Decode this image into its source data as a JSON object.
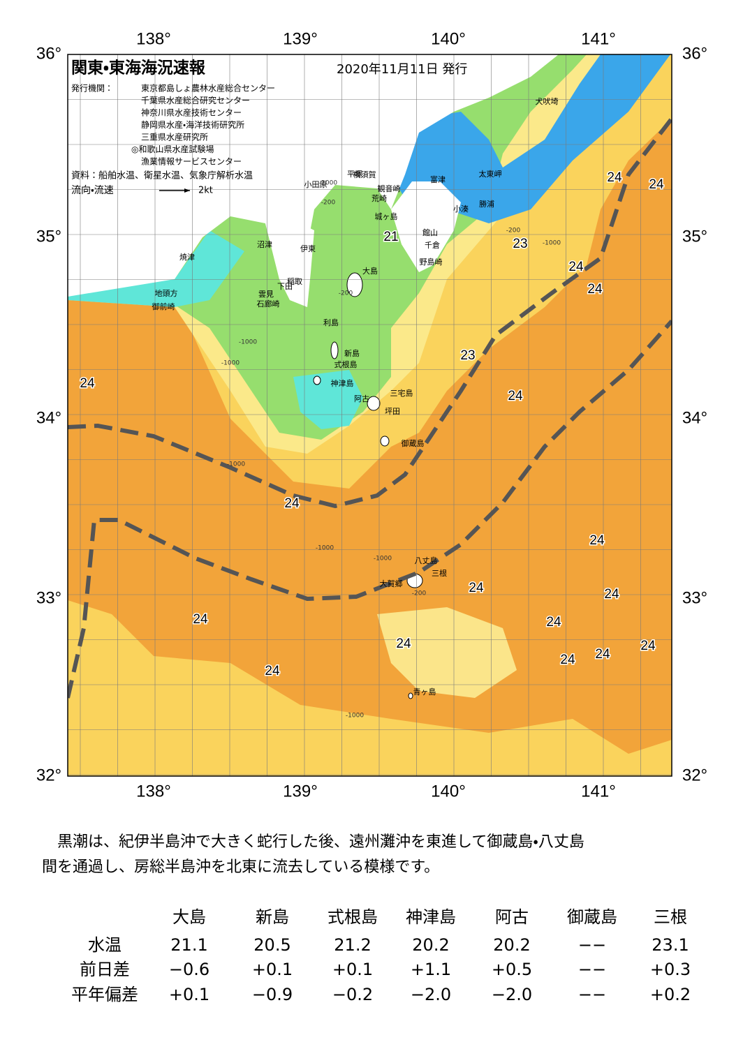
{
  "header": {
    "title": "関東・東海海況速報",
    "date": "2020年11月11日 発行"
  },
  "issuers": {
    "label": "発行機関：",
    "names": [
      "東京都島しょ農林水産総合センター",
      "千葉県水産総合研究センター",
      "神奈川県水産技術センター",
      "静岡県水産・海洋技術研究所",
      "三重県水産研究所",
      "◎和歌山県水産試験場",
      "漁業情報サービスセンター"
    ]
  },
  "source": "資料：船舶水温、衛星水温、気象庁解析水温",
  "legend": {
    "label": "流向・流速",
    "speed": "2kt"
  },
  "axes": {
    "lon_labels": [
      "138°",
      "139°",
      "140°",
      "141°"
    ],
    "lat_labels": [
      "36°",
      "35°",
      "34°",
      "33°",
      "32°"
    ]
  },
  "places": [
    "犬吠埼",
    "太東岬",
    "勝浦",
    "小湊",
    "富津",
    "横須賀",
    "平塚",
    "小田原",
    "観音崎",
    "荒崎",
    "城ヶ島",
    "館山",
    "千倉",
    "野島崎",
    "大島",
    "沼津",
    "伊東",
    "稲取",
    "下田",
    "雲見",
    "石廊崎",
    "焼津",
    "地頭方",
    "御前崎",
    "利島",
    "新島",
    "式根島",
    "神津島",
    "三宅島",
    "阿古",
    "坪田",
    "御蔵島",
    "八丈島",
    "三根",
    "大賀郷",
    "青ヶ島"
  ],
  "temperatures": [
    "24",
    "24",
    "21",
    "23",
    "24",
    "24",
    "23",
    "24",
    "24",
    "24",
    "24",
    "24",
    "24",
    "24",
    "24",
    "24",
    "24",
    "24",
    "24",
    "24"
  ],
  "depths": [
    "-200",
    "-1000",
    "-200",
    "-1000",
    "-200",
    "-1000",
    "-1000",
    "-1000",
    "-1000",
    "-1000",
    "-200",
    "-1000"
  ],
  "description": [
    "　黒潮は、紀伊半島沖で大きく蛇行した後、遠州灘沖を東進して御蔵島・八丈島",
    "間を通過し、房総半島沖を北東に流去している模様です。"
  ],
  "table": {
    "columns": [
      "大島",
      "新島",
      "式根島",
      "神津島",
      "阿古",
      "御蔵島",
      "三根"
    ],
    "rows": [
      {
        "label": "水温",
        "cells": [
          "21.1",
          "20.5",
          "21.2",
          "20.2",
          "20.2",
          "−−",
          "23.1"
        ]
      },
      {
        "label": "前日差",
        "cells": [
          "−0.6",
          "+0.1",
          "+0.1",
          "+1.1",
          "+0.5",
          "−−",
          "+0.3"
        ]
      },
      {
        "label": "平年偏差",
        "cells": [
          "+0.1",
          "−0.9",
          "−0.2",
          "−2.0",
          "−2.0",
          "−−",
          "+0.2"
        ]
      }
    ]
  }
}
